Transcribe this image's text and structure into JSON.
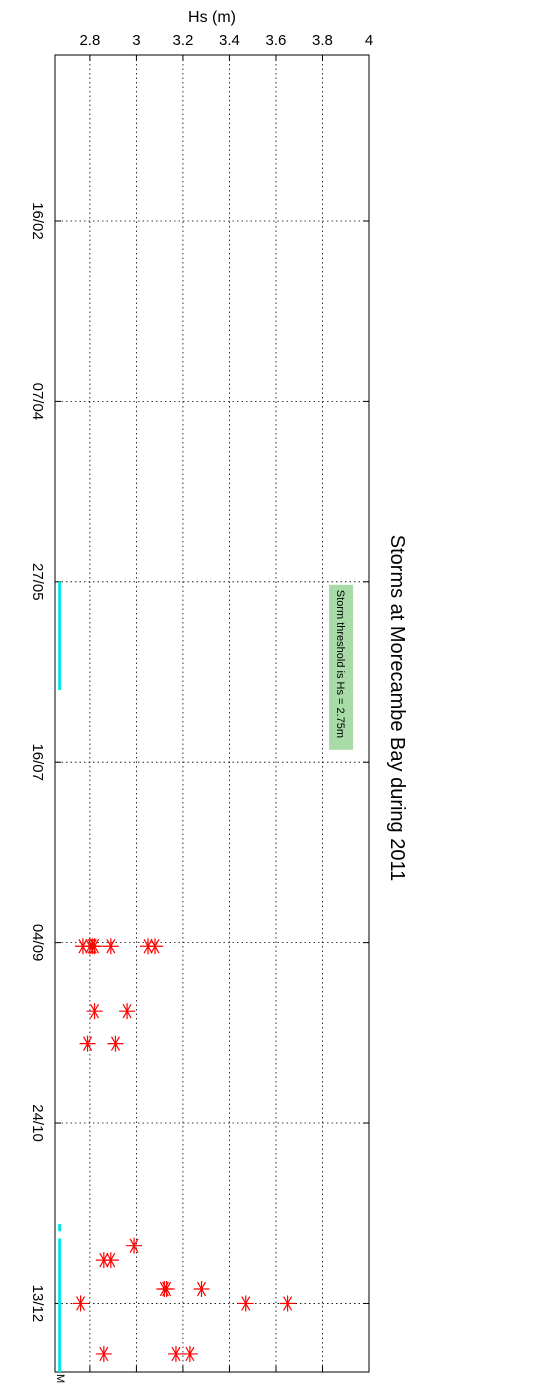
{
  "chart_data": {
    "type": "scatter",
    "title": "Storms at Morecambe Bay during 2011",
    "ylabel": "Hs (m)",
    "xlabel": "",
    "ylim": [
      2.65,
      4.0
    ],
    "xlim": [
      "2011-01-01",
      "2012-01-01"
    ],
    "grid": true,
    "x_ticks": [
      {
        "date": "2011-02-16",
        "label": "16/02"
      },
      {
        "date": "2011-04-07",
        "label": "07/04"
      },
      {
        "date": "2011-05-27",
        "label": "27/05"
      },
      {
        "date": "2011-07-16",
        "label": "16/07"
      },
      {
        "date": "2011-09-04",
        "label": "04/09"
      },
      {
        "date": "2011-10-24",
        "label": "24/10"
      },
      {
        "date": "2011-12-13",
        "label": "13/12"
      }
    ],
    "y_ticks": [
      {
        "value": 2.8,
        "label": "2.8"
      },
      {
        "value": 3.0,
        "label": "3"
      },
      {
        "value": 3.2,
        "label": "3.2"
      },
      {
        "value": 3.4,
        "label": "3.4"
      },
      {
        "value": 3.6,
        "label": "3.6"
      },
      {
        "value": 3.8,
        "label": "3.8"
      },
      {
        "value": 4.0,
        "label": "4"
      }
    ],
    "series": [
      {
        "marker": "*",
        "color": "#ff0000",
        "points": [
          {
            "x": "2011-09-05",
            "y": 3.08
          },
          {
            "x": "2011-09-05",
            "y": 3.05
          },
          {
            "x": "2011-09-05",
            "y": 2.89
          },
          {
            "x": "2011-09-05",
            "y": 2.82
          },
          {
            "x": "2011-09-05",
            "y": 2.81
          },
          {
            "x": "2011-09-05",
            "y": 2.8
          },
          {
            "x": "2011-09-05",
            "y": 2.77
          },
          {
            "x": "2011-09-23",
            "y": 2.96
          },
          {
            "x": "2011-09-23",
            "y": 2.82
          },
          {
            "x": "2011-10-02",
            "y": 2.91
          },
          {
            "x": "2011-10-02",
            "y": 2.79
          },
          {
            "x": "2011-11-27",
            "y": 2.99
          },
          {
            "x": "2011-12-01",
            "y": 2.89
          },
          {
            "x": "2011-12-01",
            "y": 2.86
          },
          {
            "x": "2011-12-09",
            "y": 3.28
          },
          {
            "x": "2011-12-09",
            "y": 3.13
          },
          {
            "x": "2011-12-09",
            "y": 3.12
          },
          {
            "x": "2011-12-13",
            "y": 3.65
          },
          {
            "x": "2011-12-13",
            "y": 3.47
          },
          {
            "x": "2011-12-13",
            "y": 2.76
          },
          {
            "x": "2011-12-27",
            "y": 3.23
          },
          {
            "x": "2011-12-27",
            "y": 3.17
          },
          {
            "x": "2011-12-27",
            "y": 2.86
          }
        ]
      }
    ],
    "missing_data": {
      "label": "Missing data",
      "color": "#00e5e5",
      "level": 2.67,
      "periods": [
        {
          "start": "2011-05-27",
          "end": "2011-06-26"
        },
        {
          "start": "2011-11-21",
          "end": "2011-11-23"
        },
        {
          "start": "2011-11-25",
          "end": "2012-01-01"
        }
      ]
    },
    "annotation": {
      "text": "Storm threshold is Hs = 2.75m",
      "background": "#a8dba8",
      "y": 3.88,
      "x_start": "2011-05-27"
    }
  }
}
